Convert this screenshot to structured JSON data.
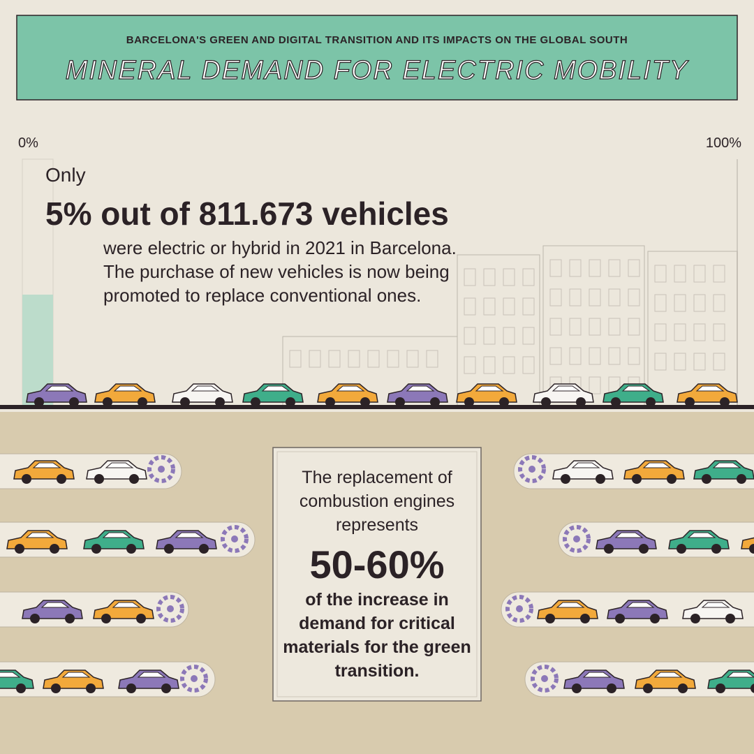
{
  "header": {
    "kicker": "BARCELONA'S GREEN AND DIGITAL TRANSITION AND ITS IMPACTS ON THE GLOBAL SOUTH",
    "title": "MINERAL DEMAND FOR ELECTRIC MOBILITY"
  },
  "scale": {
    "min_label": "0%",
    "max_label": "100%"
  },
  "stat": {
    "intro": "Only",
    "headline": "5% out of 811.673 vehicles",
    "body": [
      "were electric or hybrid in 2021 in Barcelona.",
      "The purchase of new vehicles is now being",
      "promoted to replace conventional ones."
    ]
  },
  "box": {
    "lead": [
      "The replacement of",
      "combustion engines",
      "represents"
    ],
    "figure": "50-60%",
    "tail": [
      "of the increase in",
      "demand for critical",
      "materials for the green",
      "transition."
    ]
  }
}
